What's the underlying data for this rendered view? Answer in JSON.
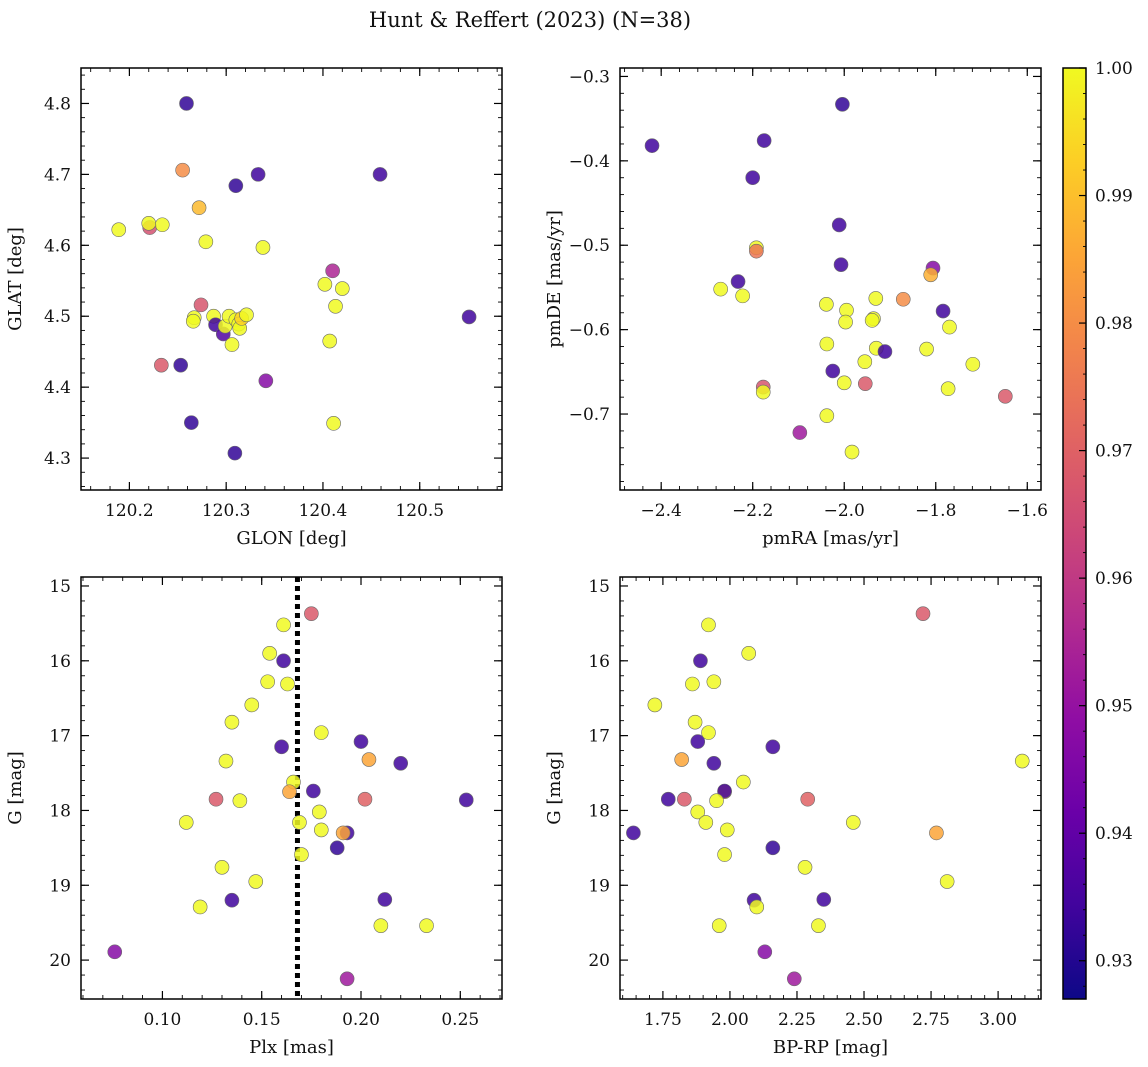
{
  "title": "Hunt & Reffert (2023) (N=38)",
  "colorbar": {
    "min": 0.927,
    "max": 1.0,
    "colormap": "plasma",
    "ticks": [
      0.93,
      0.94,
      0.95,
      0.96,
      0.97,
      0.98,
      0.99,
      1.0
    ],
    "tick_labels": [
      "0.93",
      "0.94",
      "0.95",
      "0.96",
      "0.97",
      "0.98",
      "0.99",
      "1.00"
    ]
  },
  "chart_data": [
    {
      "type": "scatter",
      "title": "",
      "xlabel": "GLON [deg]",
      "ylabel": "GLAT [deg]",
      "xlim": [
        120.15,
        120.585
      ],
      "ylim": [
        4.255,
        4.85
      ],
      "x_ticks": [
        120.2,
        120.3,
        120.4,
        120.5
      ],
      "x_tick_labels": [
        "120.2",
        "120.3",
        "120.4",
        "120.5"
      ],
      "y_ticks": [
        4.3,
        4.4,
        4.5,
        4.6,
        4.7,
        4.8
      ],
      "y_tick_labels": [
        "4.3",
        "4.4",
        "4.5",
        "4.6",
        "4.7",
        "4.8"
      ],
      "y_inverted": false,
      "points": [
        {
          "x": 120.259,
          "y": 4.8,
          "c": 0.932
        },
        {
          "x": 120.189,
          "y": 4.622,
          "c": 1.0
        },
        {
          "x": 120.221,
          "y": 4.625,
          "c": 0.966
        },
        {
          "x": 120.22,
          "y": 4.631,
          "c": 1.0
        },
        {
          "x": 120.234,
          "y": 4.629,
          "c": 1.0
        },
        {
          "x": 120.255,
          "y": 4.706,
          "c": 0.98
        },
        {
          "x": 120.272,
          "y": 4.653,
          "c": 0.989
        },
        {
          "x": 120.279,
          "y": 4.605,
          "c": 1.0
        },
        {
          "x": 120.31,
          "y": 4.684,
          "c": 0.932
        },
        {
          "x": 120.333,
          "y": 4.7,
          "c": 0.934
        },
        {
          "x": 120.459,
          "y": 4.7,
          "c": 0.934
        },
        {
          "x": 120.338,
          "y": 4.597,
          "c": 1.0
        },
        {
          "x": 120.41,
          "y": 4.564,
          "c": 0.955
        },
        {
          "x": 120.402,
          "y": 4.545,
          "c": 1.0
        },
        {
          "x": 120.42,
          "y": 4.539,
          "c": 1.0
        },
        {
          "x": 120.413,
          "y": 4.514,
          "c": 1.0
        },
        {
          "x": 120.274,
          "y": 4.516,
          "c": 0.967
        },
        {
          "x": 120.267,
          "y": 4.498,
          "c": 1.0
        },
        {
          "x": 120.266,
          "y": 4.493,
          "c": 1.0
        },
        {
          "x": 120.287,
          "y": 4.5,
          "c": 1.0
        },
        {
          "x": 120.289,
          "y": 4.488,
          "c": 0.934
        },
        {
          "x": 120.297,
          "y": 4.475,
          "c": 0.937
        },
        {
          "x": 120.299,
          "y": 4.486,
          "c": 1.0
        },
        {
          "x": 120.303,
          "y": 4.5,
          "c": 1.0
        },
        {
          "x": 120.31,
          "y": 4.495,
          "c": 1.0
        },
        {
          "x": 120.313,
          "y": 4.489,
          "c": 1.0
        },
        {
          "x": 120.314,
          "y": 4.483,
          "c": 1.0
        },
        {
          "x": 120.316,
          "y": 4.497,
          "c": 0.993
        },
        {
          "x": 120.321,
          "y": 4.502,
          "c": 1.0
        },
        {
          "x": 120.306,
          "y": 4.46,
          "c": 1.0
        },
        {
          "x": 120.551,
          "y": 4.499,
          "c": 0.934
        },
        {
          "x": 120.407,
          "y": 4.465,
          "c": 1.0
        },
        {
          "x": 120.233,
          "y": 4.431,
          "c": 0.968
        },
        {
          "x": 120.253,
          "y": 4.431,
          "c": 0.932
        },
        {
          "x": 120.341,
          "y": 4.409,
          "c": 0.947
        },
        {
          "x": 120.264,
          "y": 4.35,
          "c": 0.932
        },
        {
          "x": 120.411,
          "y": 4.349,
          "c": 1.0
        },
        {
          "x": 120.309,
          "y": 4.307,
          "c": 0.932
        }
      ]
    },
    {
      "type": "scatter",
      "title": "",
      "xlabel": "pmRA [mas/yr]",
      "ylabel": "pmDE [mas/yr]",
      "xlim": [
        -2.49,
        -1.57
      ],
      "ylim": [
        -0.79,
        -0.29
      ],
      "x_ticks": [
        -2.4,
        -2.2,
        -2.0,
        -1.8,
        -1.6
      ],
      "x_tick_labels": [
        "−2.4",
        "−2.2",
        "−2.0",
        "−1.8",
        "−1.6"
      ],
      "y_ticks": [
        -0.7,
        -0.6,
        -0.5,
        -0.4,
        -0.3
      ],
      "y_tick_labels": [
        "−0.7",
        "−0.6",
        "−0.5",
        "−0.4",
        "−0.3"
      ],
      "y_inverted": false,
      "points": [
        {
          "x": -2.004,
          "y": -0.333,
          "c": 0.932
        },
        {
          "x": -2.42,
          "y": -0.382,
          "c": 0.934
        },
        {
          "x": -2.175,
          "y": -0.376,
          "c": 0.934
        },
        {
          "x": -2.2,
          "y": -0.42,
          "c": 0.934
        },
        {
          "x": -2.011,
          "y": -0.476,
          "c": 0.934
        },
        {
          "x": -2.192,
          "y": -0.503,
          "c": 1.0
        },
        {
          "x": -2.192,
          "y": -0.507,
          "c": 0.975
        },
        {
          "x": -2.007,
          "y": -0.523,
          "c": 0.934
        },
        {
          "x": -1.806,
          "y": -0.527,
          "c": 0.947
        },
        {
          "x": -1.811,
          "y": -0.535,
          "c": 0.987
        },
        {
          "x": -1.871,
          "y": -0.564,
          "c": 0.98
        },
        {
          "x": -2.232,
          "y": -0.543,
          "c": 0.934
        },
        {
          "x": -2.27,
          "y": -0.552,
          "c": 1.0
        },
        {
          "x": -2.222,
          "y": -0.56,
          "c": 1.0
        },
        {
          "x": -2.039,
          "y": -0.57,
          "c": 1.0
        },
        {
          "x": -1.931,
          "y": -0.563,
          "c": 1.0
        },
        {
          "x": -1.995,
          "y": -0.577,
          "c": 1.0
        },
        {
          "x": -1.784,
          "y": -0.578,
          "c": 0.934
        },
        {
          "x": -1.936,
          "y": -0.587,
          "c": 1.0
        },
        {
          "x": -1.939,
          "y": -0.589,
          "c": 1.0
        },
        {
          "x": -1.997,
          "y": -0.591,
          "c": 1.0
        },
        {
          "x": -1.77,
          "y": -0.597,
          "c": 1.0
        },
        {
          "x": -2.038,
          "y": -0.617,
          "c": 1.0
        },
        {
          "x": -1.93,
          "y": -0.622,
          "c": 1.0
        },
        {
          "x": -1.911,
          "y": -0.626,
          "c": 0.934
        },
        {
          "x": -1.82,
          "y": -0.623,
          "c": 1.0
        },
        {
          "x": -1.955,
          "y": -0.638,
          "c": 1.0
        },
        {
          "x": -1.719,
          "y": -0.641,
          "c": 1.0
        },
        {
          "x": -2.025,
          "y": -0.649,
          "c": 0.934
        },
        {
          "x": -2.0,
          "y": -0.663,
          "c": 1.0
        },
        {
          "x": -1.954,
          "y": -0.664,
          "c": 0.968
        },
        {
          "x": -2.177,
          "y": -0.668,
          "c": 0.967
        },
        {
          "x": -2.177,
          "y": -0.674,
          "c": 1.0
        },
        {
          "x": -1.773,
          "y": -0.67,
          "c": 1.0
        },
        {
          "x": -1.648,
          "y": -0.679,
          "c": 0.968
        },
        {
          "x": -2.038,
          "y": -0.702,
          "c": 1.0
        },
        {
          "x": -2.097,
          "y": -0.722,
          "c": 0.952
        },
        {
          "x": -1.983,
          "y": -0.745,
          "c": 1.0
        }
      ]
    },
    {
      "type": "scatter",
      "title": "",
      "xlabel": "Plx [mas]",
      "ylabel": "G [mag]",
      "xlim": [
        0.059,
        0.271
      ],
      "ylim": [
        20.52,
        14.88
      ],
      "x_ticks": [
        0.1,
        0.15,
        0.2,
        0.25
      ],
      "x_tick_labels": [
        "0.10",
        "0.15",
        "0.20",
        "0.25"
      ],
      "y_ticks": [
        15,
        16,
        17,
        18,
        19,
        20
      ],
      "y_tick_labels": [
        "15",
        "16",
        "17",
        "18",
        "19",
        "20"
      ],
      "y_inverted": true,
      "vline": {
        "x": 0.168,
        "style": "dotted",
        "color": "#000000"
      },
      "points": [
        {
          "x": 0.175,
          "y": 15.37,
          "c": 0.968
        },
        {
          "x": 0.161,
          "y": 15.52,
          "c": 1.0
        },
        {
          "x": 0.154,
          "y": 15.9,
          "c": 1.0
        },
        {
          "x": 0.161,
          "y": 16.0,
          "c": 0.934
        },
        {
          "x": 0.153,
          "y": 16.28,
          "c": 1.0
        },
        {
          "x": 0.163,
          "y": 16.31,
          "c": 1.0
        },
        {
          "x": 0.145,
          "y": 16.59,
          "c": 1.0
        },
        {
          "x": 0.135,
          "y": 16.82,
          "c": 1.0
        },
        {
          "x": 0.18,
          "y": 16.96,
          "c": 1.0
        },
        {
          "x": 0.2,
          "y": 17.08,
          "c": 0.934
        },
        {
          "x": 0.16,
          "y": 17.15,
          "c": 0.934
        },
        {
          "x": 0.204,
          "y": 17.32,
          "c": 0.985
        },
        {
          "x": 0.132,
          "y": 17.34,
          "c": 1.0
        },
        {
          "x": 0.22,
          "y": 17.37,
          "c": 0.934
        },
        {
          "x": 0.166,
          "y": 17.62,
          "c": 1.0
        },
        {
          "x": 0.164,
          "y": 17.75,
          "c": 0.985
        },
        {
          "x": 0.176,
          "y": 17.74,
          "c": 0.934
        },
        {
          "x": 0.127,
          "y": 17.85,
          "c": 0.968
        },
        {
          "x": 0.139,
          "y": 17.87,
          "c": 1.0
        },
        {
          "x": 0.202,
          "y": 17.85,
          "c": 0.97
        },
        {
          "x": 0.253,
          "y": 17.86,
          "c": 0.934
        },
        {
          "x": 0.179,
          "y": 18.02,
          "c": 1.0
        },
        {
          "x": 0.169,
          "y": 18.16,
          "c": 1.0
        },
        {
          "x": 0.112,
          "y": 18.16,
          "c": 1.0
        },
        {
          "x": 0.18,
          "y": 18.26,
          "c": 1.0
        },
        {
          "x": 0.193,
          "y": 18.3,
          "c": 0.934
        },
        {
          "x": 0.191,
          "y": 18.3,
          "c": 0.985
        },
        {
          "x": 0.188,
          "y": 18.5,
          "c": 0.932
        },
        {
          "x": 0.17,
          "y": 18.59,
          "c": 1.0
        },
        {
          "x": 0.13,
          "y": 18.76,
          "c": 1.0
        },
        {
          "x": 0.147,
          "y": 18.95,
          "c": 1.0
        },
        {
          "x": 0.212,
          "y": 19.19,
          "c": 0.934
        },
        {
          "x": 0.135,
          "y": 19.2,
          "c": 0.934
        },
        {
          "x": 0.119,
          "y": 19.29,
          "c": 1.0
        },
        {
          "x": 0.21,
          "y": 19.54,
          "c": 1.0
        },
        {
          "x": 0.233,
          "y": 19.54,
          "c": 1.0
        },
        {
          "x": 0.076,
          "y": 19.89,
          "c": 0.947
        },
        {
          "x": 0.193,
          "y": 20.25,
          "c": 0.952
        }
      ]
    },
    {
      "type": "scatter",
      "title": "",
      "xlabel": "BP-RP [mag]",
      "ylabel": "G [mag]",
      "xlim": [
        1.59,
        3.16
      ],
      "ylim": [
        20.52,
        14.88
      ],
      "x_ticks": [
        1.75,
        2.0,
        2.25,
        2.5,
        2.75,
        3.0
      ],
      "x_tick_labels": [
        "1.75",
        "2.00",
        "2.25",
        "2.50",
        "2.75",
        "3.00"
      ],
      "y_ticks": [
        15,
        16,
        17,
        18,
        19,
        20
      ],
      "y_tick_labels": [
        "15",
        "16",
        "17",
        "18",
        "19",
        "20"
      ],
      "y_inverted": true,
      "points": [
        {
          "x": 2.72,
          "y": 15.37,
          "c": 0.968
        },
        {
          "x": 1.92,
          "y": 15.52,
          "c": 1.0
        },
        {
          "x": 2.07,
          "y": 15.9,
          "c": 1.0
        },
        {
          "x": 1.89,
          "y": 16.0,
          "c": 0.934
        },
        {
          "x": 1.94,
          "y": 16.28,
          "c": 1.0
        },
        {
          "x": 1.86,
          "y": 16.31,
          "c": 1.0
        },
        {
          "x": 1.72,
          "y": 16.59,
          "c": 1.0
        },
        {
          "x": 1.87,
          "y": 16.82,
          "c": 1.0
        },
        {
          "x": 1.92,
          "y": 16.96,
          "c": 1.0
        },
        {
          "x": 1.88,
          "y": 17.08,
          "c": 0.934
        },
        {
          "x": 2.16,
          "y": 17.15,
          "c": 0.934
        },
        {
          "x": 1.82,
          "y": 17.32,
          "c": 0.985
        },
        {
          "x": 3.09,
          "y": 17.34,
          "c": 1.0
        },
        {
          "x": 1.94,
          "y": 17.37,
          "c": 0.934
        },
        {
          "x": 2.05,
          "y": 17.62,
          "c": 1.0
        },
        {
          "x": 1.98,
          "y": 17.75,
          "c": 0.985
        },
        {
          "x": 1.98,
          "y": 17.74,
          "c": 0.934
        },
        {
          "x": 1.77,
          "y": 17.85,
          "c": 0.934
        },
        {
          "x": 1.83,
          "y": 17.85,
          "c": 0.968
        },
        {
          "x": 2.29,
          "y": 17.85,
          "c": 0.97
        },
        {
          "x": 1.95,
          "y": 17.87,
          "c": 1.0
        },
        {
          "x": 1.88,
          "y": 18.02,
          "c": 1.0
        },
        {
          "x": 1.91,
          "y": 18.16,
          "c": 1.0
        },
        {
          "x": 2.46,
          "y": 18.16,
          "c": 1.0
        },
        {
          "x": 1.99,
          "y": 18.26,
          "c": 1.0
        },
        {
          "x": 1.64,
          "y": 18.3,
          "c": 0.934
        },
        {
          "x": 2.77,
          "y": 18.3,
          "c": 0.985
        },
        {
          "x": 2.16,
          "y": 18.5,
          "c": 0.932
        },
        {
          "x": 1.98,
          "y": 18.59,
          "c": 1.0
        },
        {
          "x": 2.28,
          "y": 18.76,
          "c": 1.0
        },
        {
          "x": 2.81,
          "y": 18.95,
          "c": 1.0
        },
        {
          "x": 2.35,
          "y": 19.19,
          "c": 0.934
        },
        {
          "x": 2.09,
          "y": 19.2,
          "c": 0.934
        },
        {
          "x": 2.1,
          "y": 19.29,
          "c": 1.0
        },
        {
          "x": 1.96,
          "y": 19.54,
          "c": 1.0
        },
        {
          "x": 2.33,
          "y": 19.54,
          "c": 1.0
        },
        {
          "x": 2.13,
          "y": 19.89,
          "c": 0.947
        },
        {
          "x": 2.24,
          "y": 20.25,
          "c": 0.952
        }
      ]
    }
  ]
}
